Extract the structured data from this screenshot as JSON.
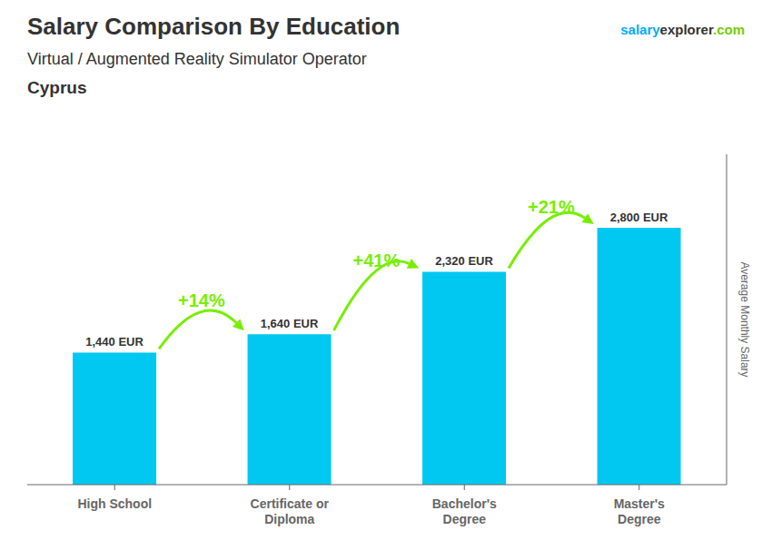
{
  "chart_data": {
    "type": "bar",
    "title": "Salary Comparison By Education",
    "subtitle": [
      "Virtual / Augmented Reality Simulator Operator",
      "Cyprus"
    ],
    "y_label": "Average Monthly Salary",
    "categories": [
      "High School",
      "Certificate or\nDiploma",
      "Bachelor's\nDegree",
      "Master's\nDegree"
    ],
    "values": [
      1440,
      1640,
      2320,
      2800
    ],
    "value_labels": [
      "1,440 EUR",
      "1,640 EUR",
      "2,320 EUR",
      "2,800 EUR"
    ],
    "data_labels": true,
    "color": "#00c8f0",
    "ylim": [
      0,
      3600
    ],
    "tick_labels": "x",
    "grid": false,
    "annotations": [
      {
        "text": "salary",
        "color": "#00aaff"
      },
      {
        "text": "explorer"
      },
      {
        "text": ".com",
        "color": "#77cc00"
      },
      {
        "text": "+14%",
        "color": "#77ee00",
        "arrow": true
      },
      {
        "text": "+41%",
        "color": "#77ee00",
        "arrow": true
      },
      {
        "text": "+21%",
        "color": "#77ee00",
        "arrow": true
      }
    ]
  }
}
